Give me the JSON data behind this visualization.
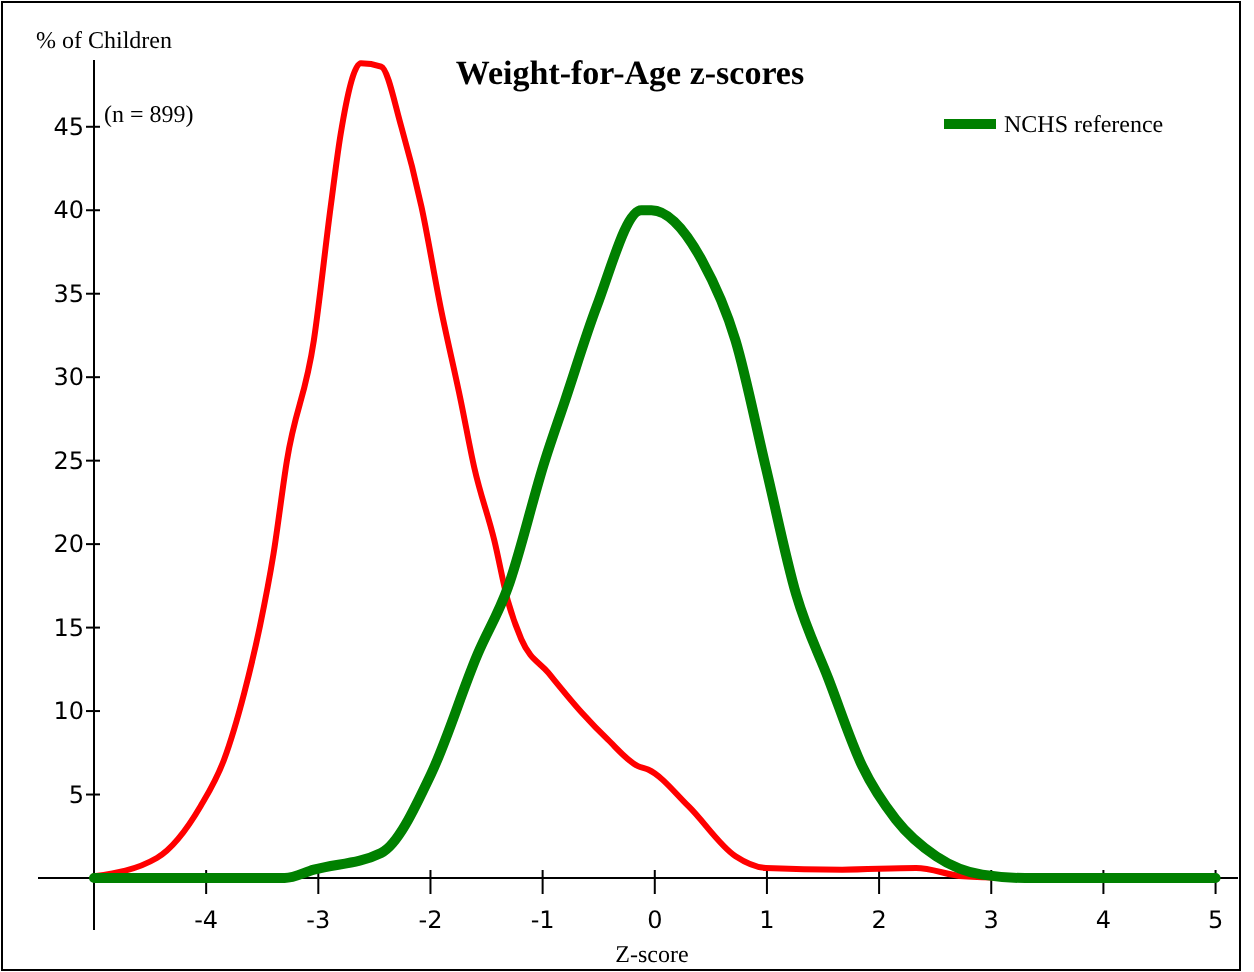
{
  "chart_data": {
    "type": "line",
    "title": "Weight-for-Age z-scores",
    "xlabel": "Z-score",
    "ylabel": "% of Children",
    "annotations": [
      "(n = 899)"
    ],
    "xlim": [
      -5,
      5.2
    ],
    "ylim": [
      0,
      49
    ],
    "xticks": [
      {
        "value": -5,
        "label": null
      },
      -4,
      -3,
      -2,
      -1,
      0,
      1,
      2,
      3,
      4,
      5
    ],
    "yticks": [
      5,
      10,
      15,
      20,
      25,
      30,
      35,
      40,
      45
    ],
    "grid": false,
    "legend": "top right",
    "marker": "none",
    "line_style": "solid",
    "series": [
      {
        "color": "#ff0000",
        "x": [
          -5,
          -4.44,
          -4.05,
          -3.84,
          -3.66,
          -3.52,
          -3.4,
          -3.28,
          -3.04,
          -2.89,
          -2.8,
          -2.62,
          -2.44,
          -2.26,
          -2.08,
          -1.91,
          -1.73,
          -1.61,
          -1.43,
          -1.31,
          -1.19,
          -0.95,
          -0.65,
          -0.42,
          -0.15,
          -0.06,
          0.3,
          0.72,
          0.99,
          1.67,
          2.33,
          2.75,
          3.16
        ],
        "values": [
          0.1,
          1.2,
          4.3,
          7.1,
          11.1,
          15.1,
          19.4,
          25,
          32.2,
          40.2,
          44.6,
          48.8,
          48.6,
          45,
          40.2,
          34.2,
          28.6,
          24.6,
          20.2,
          16.6,
          14.3,
          12.3,
          9.9,
          8.3,
          6.7,
          6.5,
          4.3,
          1.3,
          0.6,
          0.5,
          0.6,
          0.1,
          0
        ]
      },
      {
        "name": "NCHS reference",
        "color": "#008000",
        "x": [
          -5,
          -4,
          -3.3,
          -3.04,
          -2.44,
          -1.99,
          -1.58,
          -1.31,
          -0.98,
          -0.8,
          -0.52,
          -0.12,
          -0.03,
          0.42,
          0.72,
          0.99,
          1.26,
          1.55,
          1.85,
          2.15,
          2.51,
          2.92,
          3.3,
          4,
          5
        ],
        "values": [
          0,
          0,
          0,
          0.5,
          1.5,
          6.3,
          13.4,
          17.4,
          25,
          28.6,
          34.2,
          40,
          40,
          37,
          32.2,
          24.6,
          17,
          11.9,
          6.7,
          3.5,
          1.3,
          0.2,
          0,
          0,
          0
        ]
      }
    ]
  }
}
